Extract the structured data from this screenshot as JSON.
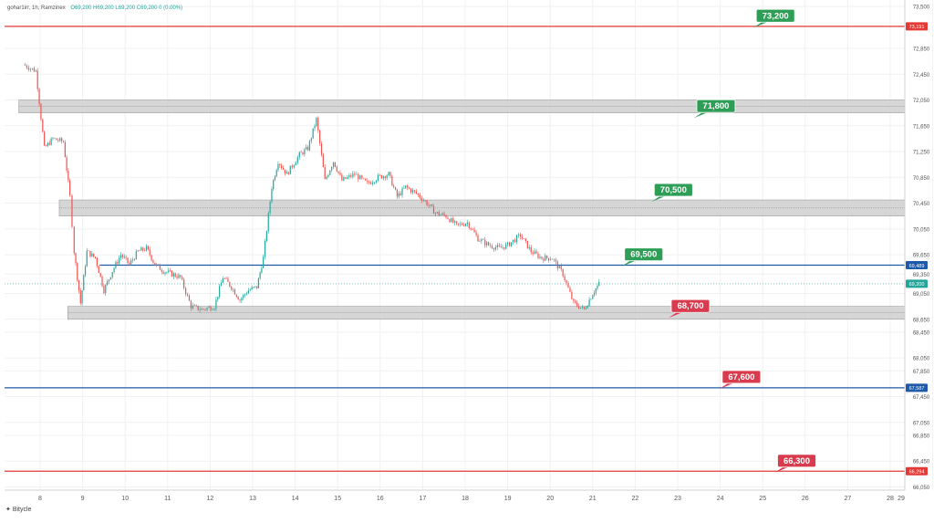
{
  "header": {
    "symbol_line": "gohar1irr, 1h, Ramzinex",
    "ohlc": "O69,200 H69,200 L69,200 C69,200 0 (0.00%)"
  },
  "brand": "Bitycle",
  "colors": {
    "up": "#26a69a",
    "down": "#ef5350",
    "zone_fill": "#cfcfcf",
    "red_line": "#e53935",
    "blue_line": "#1e5aa8",
    "green_label": "#2e9e57",
    "red_label": "#d93b4e",
    "current_price_bg": "#26a69a"
  },
  "chart_data": {
    "type": "candlestick",
    "x_tick_labels": [
      "8",
      "9",
      "10",
      "11",
      "12",
      "13",
      "14",
      "15",
      "16",
      "17",
      "18",
      "19",
      "20",
      "21",
      "22",
      "23",
      "24",
      "25",
      "26",
      "27",
      "28",
      "29"
    ],
    "y_tick_labels": [
      "73,500",
      "72,850",
      "72,450",
      "72,050",
      "71,650",
      "71,250",
      "70,850",
      "70,450",
      "70,050",
      "69,650",
      "69,350",
      "69,050",
      "68,650",
      "68,450",
      "68,050",
      "67,850",
      "67,450",
      "67,050",
      "66,850",
      "66,450",
      "66,050"
    ],
    "ylim": [
      66000,
      73600
    ],
    "price_path": [
      [
        7.6,
        72600
      ],
      [
        7.9,
        72500
      ],
      [
        8.1,
        71300
      ],
      [
        8.3,
        71450
      ],
      [
        8.55,
        71400
      ],
      [
        8.7,
        70550
      ],
      [
        8.8,
        69700
      ],
      [
        8.95,
        68900
      ],
      [
        9.1,
        69700
      ],
      [
        9.3,
        69600
      ],
      [
        9.5,
        69100
      ],
      [
        9.7,
        69400
      ],
      [
        9.9,
        69650
      ],
      [
        10.1,
        69500
      ],
      [
        10.3,
        69700
      ],
      [
        10.5,
        69750
      ],
      [
        10.7,
        69500
      ],
      [
        10.9,
        69400
      ],
      [
        11.1,
        69350
      ],
      [
        11.3,
        69300
      ],
      [
        11.55,
        68850
      ],
      [
        11.8,
        68800
      ],
      [
        12.1,
        68850
      ],
      [
        12.3,
        69300
      ],
      [
        12.5,
        69150
      ],
      [
        12.7,
        68950
      ],
      [
        12.9,
        69100
      ],
      [
        13.1,
        69150
      ],
      [
        13.25,
        69600
      ],
      [
        13.45,
        70700
      ],
      [
        13.6,
        71100
      ],
      [
        13.8,
        70900
      ],
      [
        14.1,
        71200
      ],
      [
        14.3,
        71300
      ],
      [
        14.5,
        71750
      ],
      [
        14.7,
        70800
      ],
      [
        14.9,
        71100
      ],
      [
        15.1,
        70800
      ],
      [
        15.4,
        70900
      ],
      [
        15.7,
        70750
      ],
      [
        15.95,
        70850
      ],
      [
        16.2,
        70900
      ],
      [
        16.4,
        70550
      ],
      [
        16.6,
        70700
      ],
      [
        16.85,
        70600
      ],
      [
        17.1,
        70450
      ],
      [
        17.3,
        70300
      ],
      [
        17.55,
        70250
      ],
      [
        17.8,
        70100
      ],
      [
        18.05,
        70150
      ],
      [
        18.3,
        69900
      ],
      [
        18.55,
        69800
      ],
      [
        18.8,
        69750
      ],
      [
        19.0,
        69800
      ],
      [
        19.3,
        69950
      ],
      [
        19.55,
        69700
      ],
      [
        19.8,
        69600
      ],
      [
        20.05,
        69600
      ],
      [
        20.3,
        69350
      ],
      [
        20.55,
        68900
      ],
      [
        20.8,
        68800
      ],
      [
        21.0,
        69050
      ],
      [
        21.15,
        69200
      ]
    ],
    "zones": [
      {
        "from": 71850,
        "to": 72050
      },
      {
        "from": 70250,
        "to": 70500
      },
      {
        "from": 68650,
        "to": 68850
      }
    ],
    "lines": [
      {
        "price": 73191,
        "axis_label": "73,191",
        "color": "red"
      },
      {
        "price": 69489,
        "axis_label": "69,489",
        "color": "blue"
      },
      {
        "price": 67587,
        "axis_label": "67,587",
        "color": "blue"
      },
      {
        "price": 66294,
        "axis_label": "66,294",
        "color": "red"
      }
    ],
    "current_price": {
      "price": 69200,
      "label": "69,200"
    },
    "target_labels": [
      {
        "text": "73,200",
        "price": 73200,
        "day": 25.3,
        "color": "green"
      },
      {
        "text": "71,800",
        "price": 71800,
        "day": 23.9,
        "color": "green"
      },
      {
        "text": "70,500",
        "price": 70500,
        "day": 22.9,
        "color": "green"
      },
      {
        "text": "69,500",
        "price": 69500,
        "day": 22.2,
        "color": "green"
      },
      {
        "text": "68,700",
        "price": 68700,
        "day": 23.3,
        "color": "red"
      },
      {
        "text": "67,600",
        "price": 67600,
        "day": 24.5,
        "color": "red"
      },
      {
        "text": "66,300",
        "price": 66300,
        "day": 25.8,
        "color": "red"
      }
    ]
  }
}
